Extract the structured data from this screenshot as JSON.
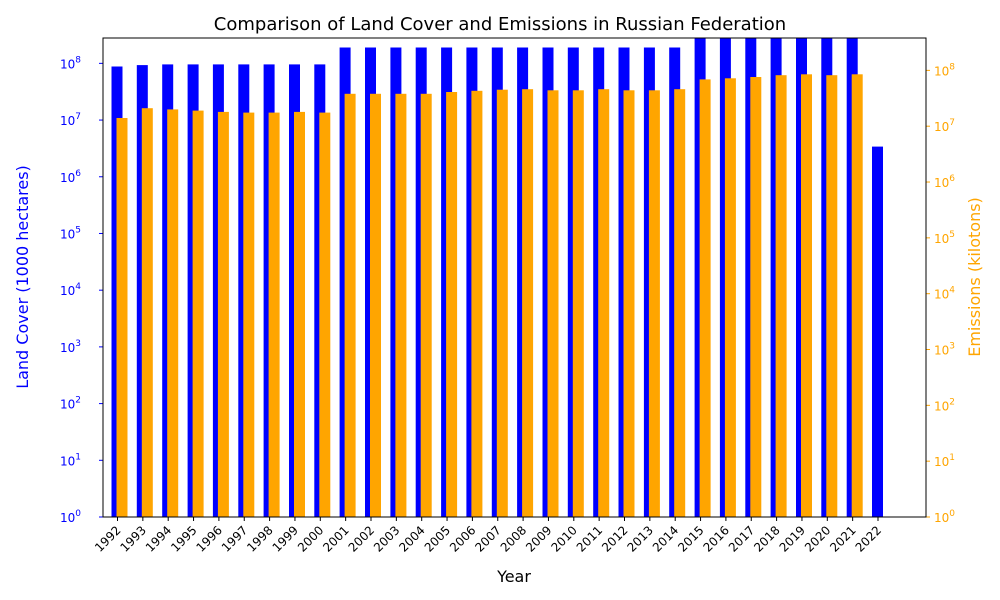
{
  "chart_data": {
    "type": "bar",
    "title": "Comparison of Land Cover and Emissions in Russian Federation",
    "xlabel": "Year",
    "ylabel_left": "Land Cover (1000 hectares)",
    "ylabel_right": "Emissions (kilotons)",
    "yscale": "log",
    "ylim_left": [
      1,
      280000000
    ],
    "ylim_right": [
      1,
      380000000
    ],
    "left_ticks": [
      "10^0",
      "10^1",
      "10^2",
      "10^3",
      "10^4",
      "10^5",
      "10^6",
      "10^7",
      "10^8"
    ],
    "right_ticks": [
      "10^0",
      "10^1",
      "10^2",
      "10^3",
      "10^4",
      "10^5",
      "10^6",
      "10^7",
      "10^8"
    ],
    "categories": [
      "1992",
      "1993",
      "1994",
      "1995",
      "1996",
      "1997",
      "1998",
      "1999",
      "2000",
      "2001",
      "2002",
      "2003",
      "2004",
      "2005",
      "2006",
      "2007",
      "2008",
      "2009",
      "2010",
      "2011",
      "2012",
      "2013",
      "2014",
      "2015",
      "2016",
      "2017",
      "2018",
      "2019",
      "2020",
      "2021",
      "2022"
    ],
    "series": [
      {
        "name": "Land Cover",
        "axis": "left",
        "color": "#0000ff",
        "values": [
          88000000,
          93000000,
          96000000,
          96000000,
          96000000,
          96000000,
          96000000,
          96000000,
          96000000,
          190000000,
          190000000,
          190000000,
          190000000,
          190000000,
          190000000,
          190000000,
          190000000,
          190000000,
          190000000,
          190000000,
          190000000,
          190000000,
          190000000,
          280000000,
          280000000,
          280000000,
          280000000,
          280000000,
          280000000,
          280000000,
          3400000
        ]
      },
      {
        "name": "Emissions",
        "axis": "right",
        "color": "#ffa500",
        "values": [
          14000000,
          21000000,
          20000000,
          19000000,
          18000000,
          17500000,
          17500000,
          18000000,
          17500000,
          38000000,
          38000000,
          38000000,
          38000000,
          41000000,
          43000000,
          45000000,
          46000000,
          44000000,
          44000000,
          46000000,
          44000000,
          44000000,
          46000000,
          69000000,
          72000000,
          76000000,
          82000000,
          85000000,
          82000000,
          85000000,
          null
        ]
      }
    ]
  }
}
